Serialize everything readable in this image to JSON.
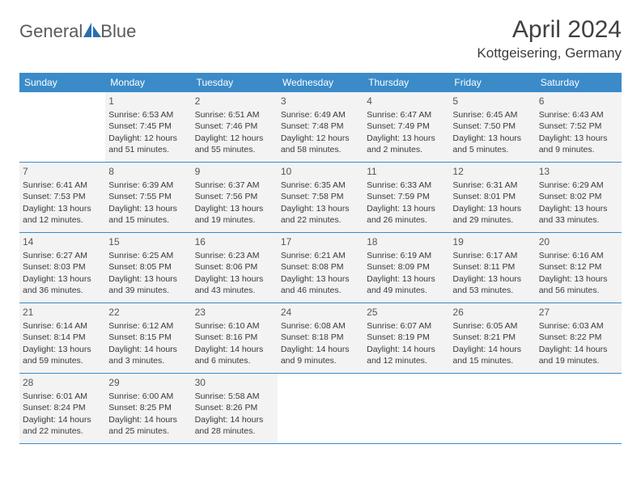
{
  "brand": {
    "general": "General",
    "blue": "Blue"
  },
  "title": "April 2024",
  "location": "Kottgeisering, Germany",
  "colors": {
    "header_bg": "#3b8bc9",
    "header_text": "#ffffff",
    "day_fill": "#f3f3f3",
    "text": "#3a3a3a",
    "title_color": "#404040"
  },
  "dow": [
    "Sunday",
    "Monday",
    "Tuesday",
    "Wednesday",
    "Thursday",
    "Friday",
    "Saturday"
  ],
  "grid": {
    "first_weekday": 1,
    "days_in_month": 30
  },
  "days": {
    "1": {
      "sunrise": "6:53 AM",
      "sunset": "7:45 PM",
      "daylight": "12 hours and 51 minutes."
    },
    "2": {
      "sunrise": "6:51 AM",
      "sunset": "7:46 PM",
      "daylight": "12 hours and 55 minutes."
    },
    "3": {
      "sunrise": "6:49 AM",
      "sunset": "7:48 PM",
      "daylight": "12 hours and 58 minutes."
    },
    "4": {
      "sunrise": "6:47 AM",
      "sunset": "7:49 PM",
      "daylight": "13 hours and 2 minutes."
    },
    "5": {
      "sunrise": "6:45 AM",
      "sunset": "7:50 PM",
      "daylight": "13 hours and 5 minutes."
    },
    "6": {
      "sunrise": "6:43 AM",
      "sunset": "7:52 PM",
      "daylight": "13 hours and 9 minutes."
    },
    "7": {
      "sunrise": "6:41 AM",
      "sunset": "7:53 PM",
      "daylight": "13 hours and 12 minutes."
    },
    "8": {
      "sunrise": "6:39 AM",
      "sunset": "7:55 PM",
      "daylight": "13 hours and 15 minutes."
    },
    "9": {
      "sunrise": "6:37 AM",
      "sunset": "7:56 PM",
      "daylight": "13 hours and 19 minutes."
    },
    "10": {
      "sunrise": "6:35 AM",
      "sunset": "7:58 PM",
      "daylight": "13 hours and 22 minutes."
    },
    "11": {
      "sunrise": "6:33 AM",
      "sunset": "7:59 PM",
      "daylight": "13 hours and 26 minutes."
    },
    "12": {
      "sunrise": "6:31 AM",
      "sunset": "8:01 PM",
      "daylight": "13 hours and 29 minutes."
    },
    "13": {
      "sunrise": "6:29 AM",
      "sunset": "8:02 PM",
      "daylight": "13 hours and 33 minutes."
    },
    "14": {
      "sunrise": "6:27 AM",
      "sunset": "8:03 PM",
      "daylight": "13 hours and 36 minutes."
    },
    "15": {
      "sunrise": "6:25 AM",
      "sunset": "8:05 PM",
      "daylight": "13 hours and 39 minutes."
    },
    "16": {
      "sunrise": "6:23 AM",
      "sunset": "8:06 PM",
      "daylight": "13 hours and 43 minutes."
    },
    "17": {
      "sunrise": "6:21 AM",
      "sunset": "8:08 PM",
      "daylight": "13 hours and 46 minutes."
    },
    "18": {
      "sunrise": "6:19 AM",
      "sunset": "8:09 PM",
      "daylight": "13 hours and 49 minutes."
    },
    "19": {
      "sunrise": "6:17 AM",
      "sunset": "8:11 PM",
      "daylight": "13 hours and 53 minutes."
    },
    "20": {
      "sunrise": "6:16 AM",
      "sunset": "8:12 PM",
      "daylight": "13 hours and 56 minutes."
    },
    "21": {
      "sunrise": "6:14 AM",
      "sunset": "8:14 PM",
      "daylight": "13 hours and 59 minutes."
    },
    "22": {
      "sunrise": "6:12 AM",
      "sunset": "8:15 PM",
      "daylight": "14 hours and 3 minutes."
    },
    "23": {
      "sunrise": "6:10 AM",
      "sunset": "8:16 PM",
      "daylight": "14 hours and 6 minutes."
    },
    "24": {
      "sunrise": "6:08 AM",
      "sunset": "8:18 PM",
      "daylight": "14 hours and 9 minutes."
    },
    "25": {
      "sunrise": "6:07 AM",
      "sunset": "8:19 PM",
      "daylight": "14 hours and 12 minutes."
    },
    "26": {
      "sunrise": "6:05 AM",
      "sunset": "8:21 PM",
      "daylight": "14 hours and 15 minutes."
    },
    "27": {
      "sunrise": "6:03 AM",
      "sunset": "8:22 PM",
      "daylight": "14 hours and 19 minutes."
    },
    "28": {
      "sunrise": "6:01 AM",
      "sunset": "8:24 PM",
      "daylight": "14 hours and 22 minutes."
    },
    "29": {
      "sunrise": "6:00 AM",
      "sunset": "8:25 PM",
      "daylight": "14 hours and 25 minutes."
    },
    "30": {
      "sunrise": "5:58 AM",
      "sunset": "8:26 PM",
      "daylight": "14 hours and 28 minutes."
    }
  },
  "labels": {
    "sunrise_prefix": "Sunrise: ",
    "sunset_prefix": "Sunset: ",
    "daylight_prefix": "Daylight: "
  }
}
